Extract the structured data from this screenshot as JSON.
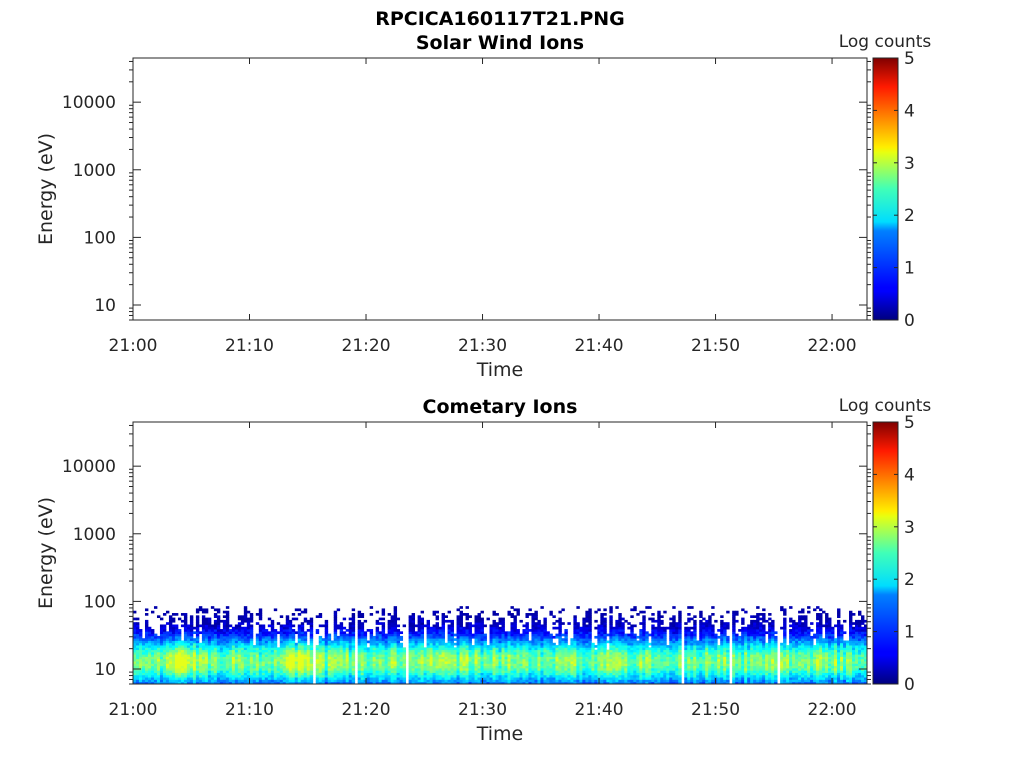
{
  "figure_title": "RPCICA160117T21.PNG",
  "chart_data": [
    {
      "type": "heatmap",
      "title": "Solar Wind Ions",
      "xlabel": "Time",
      "ylabel": "Energy (eV)",
      "x_ticks": [
        "21:00",
        "21:10",
        "21:20",
        "21:30",
        "21:40",
        "21:50",
        "22:00"
      ],
      "xlim": [
        "21:00",
        "22:03"
      ],
      "y_scale": "log",
      "y_ticks": [
        10,
        100,
        1000,
        10000
      ],
      "y_tick_labels": [
        "10",
        "100",
        "1000",
        "10000"
      ],
      "ylim": [
        6,
        45000
      ],
      "colorbar": {
        "label": "Log counts",
        "range": [
          0,
          5
        ],
        "ticks": [
          "0",
          "1",
          "2",
          "3",
          "4",
          "5"
        ],
        "colormap": "jet"
      },
      "band": null
    },
    {
      "type": "heatmap",
      "title": "Cometary Ions",
      "xlabel": "Time",
      "ylabel": "Energy (eV)",
      "x_ticks": [
        "21:00",
        "21:10",
        "21:20",
        "21:30",
        "21:40",
        "21:50",
        "22:00"
      ],
      "xlim": [
        "21:00",
        "22:03"
      ],
      "y_scale": "log",
      "y_ticks": [
        10,
        100,
        1000,
        10000
      ],
      "y_tick_labels": [
        "10",
        "100",
        "1000",
        "10000"
      ],
      "ylim": [
        6,
        45000
      ],
      "colorbar": {
        "label": "Log counts",
        "range": [
          0,
          5
        ],
        "ticks": [
          "0",
          "1",
          "2",
          "3",
          "4",
          "5"
        ],
        "colormap": "jet"
      },
      "band": {
        "energy_min_eV": 6,
        "energy_max_eV": 85,
        "peak_energy_eV": 13,
        "peak_log_counts": 2.5,
        "max_log_counts": 3.0,
        "hot_spots": [
          "21:04",
          "21:14"
        ]
      }
    }
  ]
}
